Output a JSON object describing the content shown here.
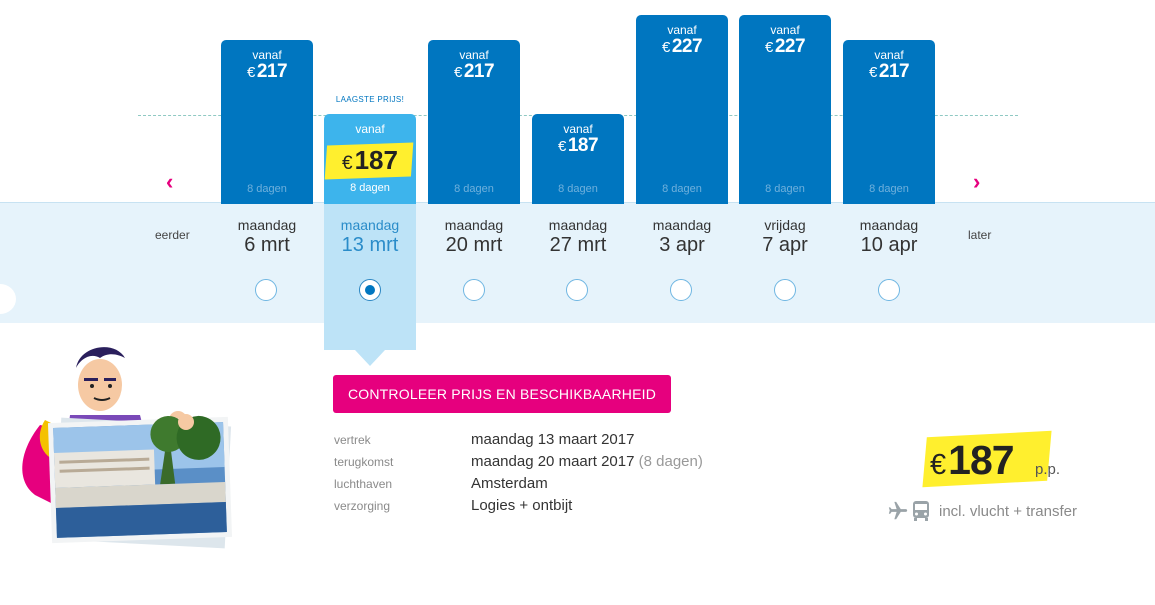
{
  "colors": {
    "bar": "#0076c0",
    "bar_selected": "#3db4ec",
    "highlight_yellow": "#ffef2e",
    "accent_pink": "#e6007e",
    "band": "#e6f3fb"
  },
  "nav": {
    "prev_label": "eerder",
    "next_label": "later",
    "prev_icon": "chevron-left-icon",
    "next_icon": "chevron-right-icon",
    "prev_glyph": "‹",
    "next_glyph": "›"
  },
  "lowest_price_label": "LAAGSTE PRIJS!",
  "dates": [
    {
      "vanaf": "vanaf",
      "currency": "€",
      "price": "217",
      "days": "8 dagen",
      "weekday": "maandag",
      "date": "6 mrt",
      "selected": false
    },
    {
      "vanaf": "vanaf",
      "currency": "€",
      "price": "187",
      "days": "8 dagen",
      "weekday": "maandag",
      "date": "13 mrt",
      "selected": true
    },
    {
      "vanaf": "vanaf",
      "currency": "€",
      "price": "217",
      "days": "8 dagen",
      "weekday": "maandag",
      "date": "20 mrt",
      "selected": false
    },
    {
      "vanaf": "vanaf",
      "currency": "€",
      "price": "187",
      "days": "8 dagen",
      "weekday": "maandag",
      "date": "27 mrt",
      "selected": false
    },
    {
      "vanaf": "vanaf",
      "currency": "€",
      "price": "227",
      "days": "8 dagen",
      "weekday": "maandag",
      "date": "3 apr",
      "selected": false
    },
    {
      "vanaf": "vanaf",
      "currency": "€",
      "price": "227",
      "days": "8 dagen",
      "weekday": "vrijdag",
      "date": "7 apr",
      "selected": false
    },
    {
      "vanaf": "vanaf",
      "currency": "€",
      "price": "217",
      "days": "8 dagen",
      "weekday": "maandag",
      "date": "10 apr",
      "selected": false
    }
  ],
  "cta_label": "CONTROLEER PRIJS EN BESCHIKBAARHEID",
  "details": {
    "departure_label": "vertrek",
    "departure_value": "maandag 13 maart 2017",
    "return_label": "terugkomst",
    "return_value": "maandag 20 maart 2017",
    "return_duration": "(8 dagen)",
    "airport_label": "luchthaven",
    "airport_value": "Amsterdam",
    "board_label": "verzorging",
    "board_value": "Logies + ontbijt"
  },
  "summary": {
    "currency": "€",
    "price": "187",
    "per_person": "p.p.",
    "includes": "incl. vlucht + transfer",
    "plane_icon": "plane-icon",
    "bus_icon": "bus-icon"
  }
}
